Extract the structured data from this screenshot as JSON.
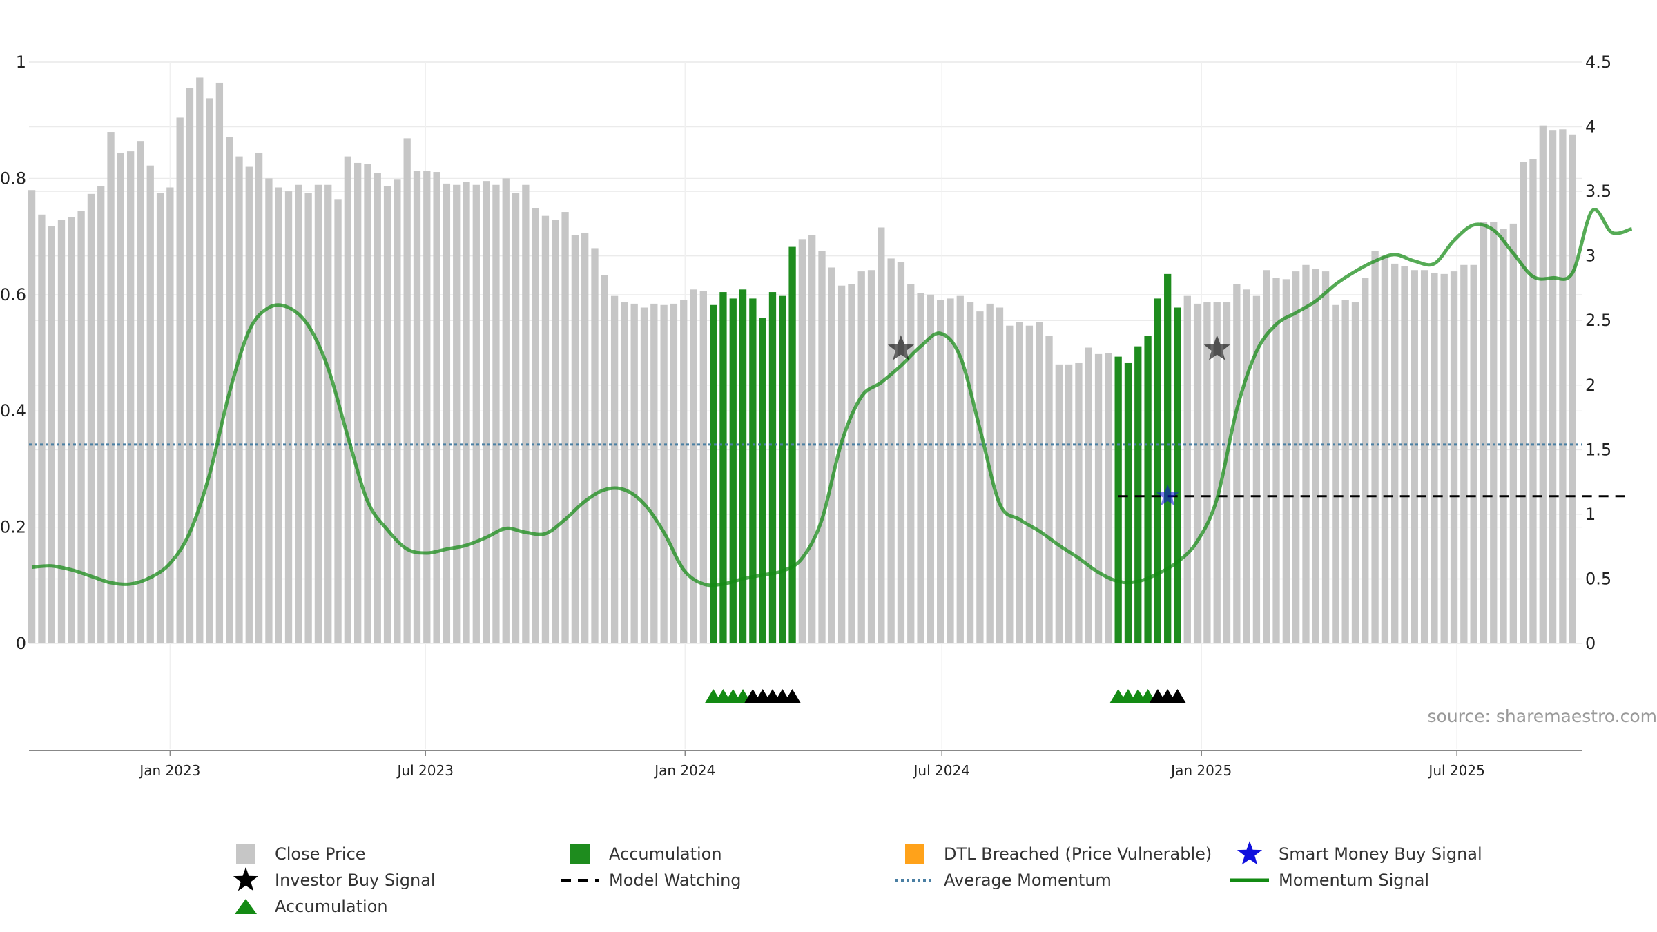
{
  "chart_data": {
    "type": "bar",
    "title": "",
    "left_axis": {
      "range": [
        0,
        1
      ],
      "ticks": [
        "0",
        "0.2",
        "0.4",
        "0.6",
        "0.8",
        "1"
      ],
      "tick_values": [
        0,
        0.2,
        0.4,
        0.6,
        0.8,
        1
      ]
    },
    "right_axis": {
      "range": [
        0,
        4.5
      ],
      "ticks": [
        "0",
        "0.5",
        "1",
        "1.5",
        "2",
        "2.5",
        "3",
        "3.5",
        "4",
        "4.5"
      ],
      "tick_values": [
        0,
        0.5,
        1,
        1.5,
        2,
        2.5,
        3,
        3.5,
        4,
        4.5
      ]
    },
    "x_axis": {
      "start": "2022-09-23",
      "end": "2025-09-28",
      "ticks": [
        {
          "label": "Jan 2023",
          "date": "2023-01-01"
        },
        {
          "label": "Jul 2023",
          "date": "2023-07-01"
        },
        {
          "label": "Jan 2024",
          "date": "2024-01-01"
        },
        {
          "label": "Jul 2024",
          "date": "2024-07-01"
        },
        {
          "label": "Jan 2025",
          "date": "2025-01-01"
        },
        {
          "label": "Jul 2025",
          "date": "2025-07-01"
        }
      ]
    },
    "grid": true,
    "bar_period_days": 7,
    "first_bar_date": "2022-09-25",
    "close_price": [
      3.51,
      3.32,
      3.23,
      3.28,
      3.3,
      3.35,
      3.48,
      3.54,
      3.96,
      3.8,
      3.81,
      3.89,
      3.7,
      3.49,
      3.53,
      4.07,
      4.3,
      4.38,
      4.22,
      4.34,
      3.92,
      3.77,
      3.69,
      3.8,
      3.6,
      3.53,
      3.5,
      3.55,
      3.49,
      3.55,
      3.55,
      3.44,
      3.77,
      3.72,
      3.71,
      3.64,
      3.54,
      3.59,
      3.91,
      3.66,
      3.66,
      3.65,
      3.56,
      3.55,
      3.57,
      3.55,
      3.58,
      3.55,
      3.6,
      3.49,
      3.55,
      3.37,
      3.31,
      3.28,
      3.34,
      3.16,
      3.18,
      3.06,
      2.85,
      2.69,
      2.64,
      2.63,
      2.6,
      2.63,
      2.62,
      2.63,
      2.66,
      2.74,
      2.73,
      2.62,
      2.72,
      2.67,
      2.74,
      2.67,
      2.52,
      2.72,
      2.69,
      3.07,
      3.13,
      3.16,
      3.04,
      2.91,
      2.77,
      2.78,
      2.88,
      2.89,
      3.22,
      2.98,
      2.95,
      2.78,
      2.71,
      2.7,
      2.66,
      2.67,
      2.69,
      2.64,
      2.57,
      2.63,
      2.6,
      2.46,
      2.49,
      2.46,
      2.49,
      2.38,
      2.16,
      2.16,
      2.17,
      2.29,
      2.24,
      2.25,
      2.22,
      2.17,
      2.3,
      2.38,
      2.67,
      2.86,
      2.6,
      2.69,
      2.63,
      2.64,
      2.64,
      2.64,
      2.78,
      2.74,
      2.69,
      2.89,
      2.83,
      2.82,
      2.88,
      2.93,
      2.9,
      2.88,
      2.62,
      2.66,
      2.64,
      2.83,
      3.04,
      3.0,
      2.94,
      2.92,
      2.89,
      2.89,
      2.87,
      2.86,
      2.88,
      2.93,
      2.93,
      3.26,
      3.26,
      3.21,
      3.25,
      3.73,
      3.75,
      4.01,
      3.97,
      3.98,
      3.94
    ],
    "accumulation_bar_ranges": [
      [
        69,
        77
      ],
      [
        110,
        116
      ]
    ],
    "momentum_signal_points": [
      [
        0,
        0.59
      ],
      [
        2,
        0.6
      ],
      [
        4,
        0.57
      ],
      [
        6,
        0.52
      ],
      [
        8,
        0.47
      ],
      [
        10,
        0.46
      ],
      [
        12,
        0.51
      ],
      [
        14,
        0.62
      ],
      [
        16,
        0.86
      ],
      [
        18,
        1.31
      ],
      [
        20,
        1.94
      ],
      [
        22,
        2.42
      ],
      [
        24,
        2.6
      ],
      [
        26,
        2.6
      ],
      [
        28,
        2.46
      ],
      [
        30,
        2.13
      ],
      [
        32,
        1.6
      ],
      [
        34,
        1.1
      ],
      [
        36,
        0.88
      ],
      [
        38,
        0.73
      ],
      [
        40,
        0.7
      ],
      [
        42,
        0.73
      ],
      [
        44,
        0.76
      ],
      [
        46,
        0.82
      ],
      [
        48,
        0.89
      ],
      [
        50,
        0.86
      ],
      [
        52,
        0.85
      ],
      [
        54,
        0.96
      ],
      [
        56,
        1.1
      ],
      [
        58,
        1.19
      ],
      [
        60,
        1.19
      ],
      [
        62,
        1.08
      ],
      [
        64,
        0.86
      ],
      [
        66,
        0.57
      ],
      [
        68,
        0.46
      ],
      [
        70,
        0.46
      ],
      [
        72,
        0.5
      ],
      [
        74,
        0.53
      ],
      [
        76,
        0.56
      ],
      [
        78,
        0.66
      ],
      [
        80,
        0.96
      ],
      [
        82,
        1.56
      ],
      [
        84,
        1.91
      ],
      [
        86,
        2.02
      ],
      [
        88,
        2.15
      ],
      [
        90,
        2.3
      ],
      [
        92,
        2.4
      ],
      [
        94,
        2.22
      ],
      [
        96,
        1.66
      ],
      [
        98,
        1.08
      ],
      [
        100,
        0.96
      ],
      [
        102,
        0.87
      ],
      [
        104,
        0.76
      ],
      [
        106,
        0.66
      ],
      [
        108,
        0.55
      ],
      [
        110,
        0.48
      ],
      [
        112,
        0.48
      ],
      [
        114,
        0.54
      ],
      [
        116,
        0.63
      ],
      [
        118,
        0.79
      ],
      [
        120,
        1.12
      ],
      [
        122,
        1.81
      ],
      [
        124,
        2.26
      ],
      [
        126,
        2.47
      ],
      [
        128,
        2.56
      ],
      [
        130,
        2.65
      ],
      [
        132,
        2.78
      ],
      [
        134,
        2.88
      ],
      [
        136,
        2.96
      ],
      [
        138,
        3.01
      ],
      [
        140,
        2.96
      ],
      [
        142,
        2.94
      ],
      [
        144,
        3.12
      ],
      [
        146,
        3.24
      ],
      [
        148,
        3.2
      ],
      [
        150,
        3.02
      ],
      [
        152,
        2.84
      ],
      [
        154,
        2.83
      ],
      [
        156,
        2.87
      ],
      [
        158,
        3.35
      ],
      [
        160,
        3.18
      ],
      [
        162,
        3.21
      ]
    ],
    "average_momentum": 1.54,
    "model_watching": {
      "from_bar": 110,
      "to_bar": 162,
      "value": 1.14
    },
    "investor_buy_signals": [
      {
        "bar": 88,
        "value": 2.28
      },
      {
        "bar": 120,
        "value": 2.28
      }
    ],
    "smart_money_buy_signals": [
      {
        "bar": 115,
        "value": 1.14
      }
    ],
    "marker_rows": [
      {
        "from_bar": 69,
        "to_bar": 77,
        "green_count": 4
      },
      {
        "from_bar": 110,
        "to_bar": 116,
        "green_count": 4
      }
    ],
    "colors": {
      "close_price": "#c6c6c6",
      "accumulation": "#1e8c1e",
      "dtl_breached": "#ffa21a",
      "smart_money": "#1010dd",
      "investor_buy": "#000000",
      "model_watching": "#000000",
      "average_momentum": "#4a7fa3",
      "momentum_signal": "#138a13",
      "grid": "#ebebeb"
    },
    "legend": {
      "placement": "bottom",
      "items": [
        {
          "key": "close_price",
          "label": "Close Price"
        },
        {
          "key": "accumulation_bar",
          "label": "Accumulation"
        },
        {
          "key": "dtl",
          "label": "DTL Breached (Price Vulnerable)"
        },
        {
          "key": "smart_money",
          "label": "Smart Money Buy Signal"
        },
        {
          "key": "investor_buy",
          "label": "Investor Buy Signal"
        },
        {
          "key": "model_watching",
          "label": "Model Watching"
        },
        {
          "key": "avg_momentum",
          "label": "Average Momentum"
        },
        {
          "key": "momentum_signal",
          "label": "Momentum Signal"
        },
        {
          "key": "accumulation_marker",
          "label": "Accumulation"
        }
      ]
    },
    "source_text": "source: sharemaestro.com"
  }
}
